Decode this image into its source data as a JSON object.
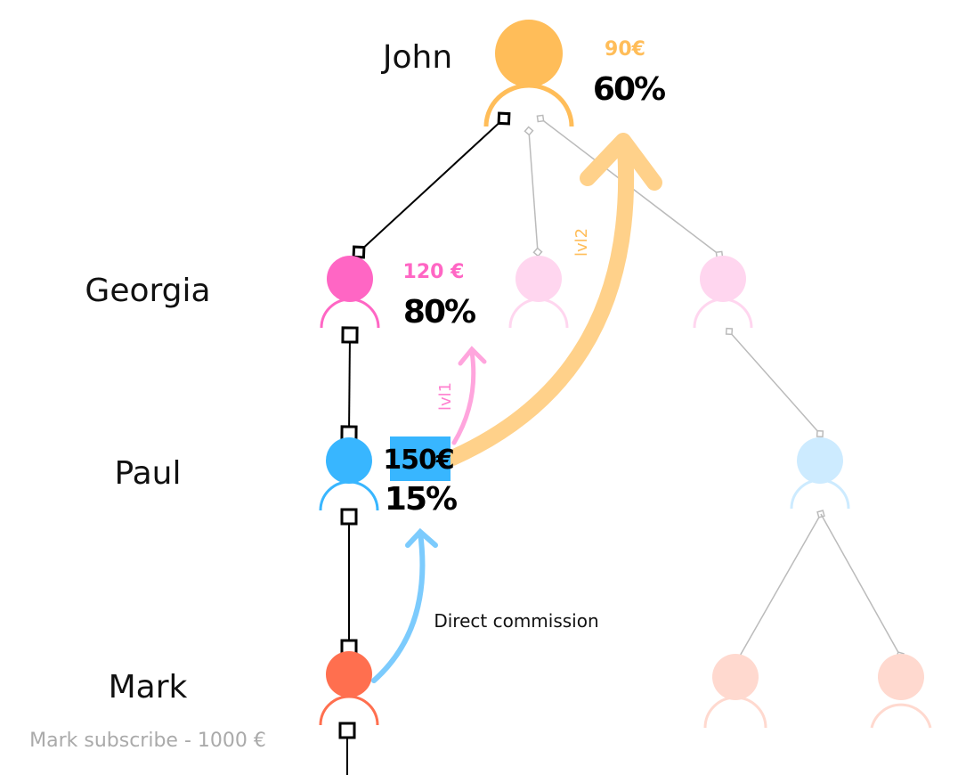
{
  "people": [
    {
      "name": "John",
      "amount": "90€",
      "percent": "60%"
    },
    {
      "name": "Georgia",
      "amount": "120 €",
      "percent": "80%"
    },
    {
      "name": "Paul",
      "amount": "150€",
      "percent": "15%"
    },
    {
      "name": "Mark"
    }
  ],
  "caption": "Mark subscribe - 1000 €",
  "arrows": {
    "direct": "Direct commission",
    "lvl1": "lvl1",
    "lvl2": "lvl2"
  }
}
